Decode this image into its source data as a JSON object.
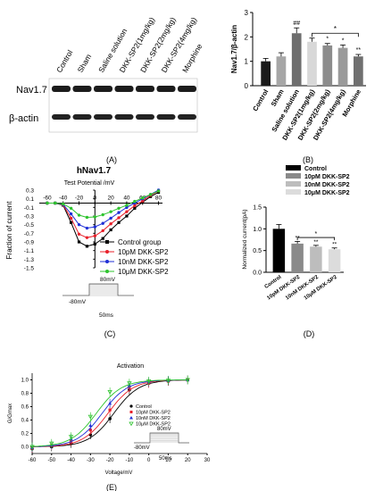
{
  "panel_letters": {
    "a": "(A)",
    "b": "(B)",
    "c": "(C)",
    "d": "(D)",
    "e": "(E)"
  },
  "blot": {
    "lanes": [
      "Control",
      "Sham",
      "Saline solution",
      "DKK-SP2(1mg/kg)",
      "DKK-SP2(2mg/kg)",
      "DKK-SP2(4mg/kg)",
      "Morphine"
    ],
    "rows": [
      "Nav1.7",
      "β-actin"
    ]
  },
  "chart_data": [
    {
      "id": "B",
      "type": "bar",
      "ylabel": "Nav1.7/β-actin",
      "ylim": [
        0,
        3
      ],
      "yticks": [
        "0",
        "1",
        "2",
        "3"
      ],
      "categories": [
        "Control",
        "Sham",
        "Saline solution",
        "DKK-SP2(1mg/kg)",
        "DKK-SP2(2mg/kg)",
        "DKK-SP2(4mg/kg)",
        "Morphine"
      ],
      "values": [
        1.0,
        1.2,
        2.15,
        1.8,
        1.65,
        1.55,
        1.2
      ],
      "errors": [
        0.12,
        0.15,
        0.22,
        0.15,
        0.08,
        0.12,
        0.08
      ],
      "colors": [
        "#1a1a1a",
        "#a6a6a6",
        "#6e6e6e",
        "#d8d8d8",
        "#8c8c8c",
        "#9a9a9a",
        "#707070"
      ],
      "sig": [
        "",
        "",
        "##",
        "",
        "*",
        "*",
        "**"
      ],
      "bracket": "*"
    },
    {
      "id": "C",
      "type": "line",
      "title": "hNav1.7",
      "subtitle": "Test Potential /mV",
      "ylabel": "Fraction of current",
      "xticks": [
        "-60",
        "-40",
        "-20",
        "0",
        "20",
        "40",
        "60",
        "80"
      ],
      "yticks": [
        "0.3",
        "0.1",
        "-0.1",
        "-0.3",
        "-0.5",
        "-0.7",
        "-0.9",
        "-1.1",
        "-1.3",
        "-1.5"
      ],
      "xlim": [
        -70,
        85
      ],
      "ylim": [
        -1.5,
        0.3
      ],
      "legend": [
        "Control group",
        "10pM DKK-SP2",
        "10nM DKK-SP2",
        "10μM DKK-SP2"
      ],
      "colors": [
        "#000000",
        "#e8202a",
        "#1f2fd6",
        "#2ec42e"
      ],
      "x": [
        -60,
        -50,
        -40,
        -30,
        -20,
        -10,
        0,
        10,
        20,
        30,
        40,
        50,
        60,
        70,
        80
      ],
      "series": [
        {
          "name": "Control group",
          "values": [
            0,
            0,
            -0.05,
            -0.45,
            -0.9,
            -1.0,
            -0.95,
            -0.82,
            -0.62,
            -0.45,
            -0.3,
            -0.12,
            0.02,
            0.15,
            0.25
          ]
        },
        {
          "name": "10pM DKK-SP2",
          "values": [
            0,
            0,
            -0.04,
            -0.35,
            -0.72,
            -0.8,
            -0.76,
            -0.64,
            -0.48,
            -0.34,
            -0.2,
            -0.06,
            0.05,
            0.18,
            0.28
          ]
        },
        {
          "name": "10nM DKK-SP2",
          "values": [
            0,
            0,
            -0.03,
            -0.25,
            -0.5,
            -0.58,
            -0.55,
            -0.47,
            -0.35,
            -0.22,
            -0.1,
            0.0,
            0.1,
            0.2,
            0.3
          ]
        },
        {
          "name": "10μM DKK-SP2",
          "values": [
            0,
            0,
            -0.02,
            -0.12,
            -0.28,
            -0.33,
            -0.32,
            -0.27,
            -0.2,
            -0.12,
            -0.05,
            0.04,
            0.12,
            0.2,
            0.28
          ]
        }
      ],
      "protocol": {
        "top": "80mV",
        "left": "-80mV",
        "bottom": "50ms"
      }
    },
    {
      "id": "D",
      "type": "bar",
      "ylabel": "Normalized current(pA)",
      "ylim": [
        0,
        1.5
      ],
      "yticks": [
        "0.0",
        "0.5",
        "1.0",
        "1.5"
      ],
      "categories": [
        "Control",
        "10pM DKK-SP2",
        "10nM DKK-SP2",
        "10μM DKK-SP2"
      ],
      "values": [
        1.0,
        0.66,
        0.59,
        0.53
      ],
      "errors": [
        0.1,
        0.05,
        0.03,
        0.03
      ],
      "colors": [
        "#000000",
        "#8a8a8a",
        "#bdbdbd",
        "#dcdcdc"
      ],
      "sig": [
        "",
        "**",
        "**",
        "**"
      ],
      "bracket": "*",
      "legend": [
        "Control",
        "10pM DKK-SP2",
        "10nM DKK-SP2",
        "10μM DKK-SP2"
      ]
    },
    {
      "id": "E",
      "type": "scatter",
      "title": "Activation",
      "xlabel": "Voltage/mV",
      "ylabel": "G/Gmax",
      "xlim": [
        -60,
        30
      ],
      "ylim": [
        -0.1,
        1.1
      ],
      "xticks": [
        "-60",
        "-50",
        "-40",
        "-30",
        "-20",
        "-10",
        "0",
        "10",
        "20",
        "30"
      ],
      "yticks": [
        "0.0",
        "0.2",
        "0.4",
        "0.6",
        "0.8",
        "1.0"
      ],
      "legend": [
        "Control",
        "10pM DKK-SP2",
        "10nM DKK-SP2",
        "10μM DKK-SP2"
      ],
      "colors": [
        "#000000",
        "#e8202a",
        "#1f2fd6",
        "#2ec42e"
      ],
      "x": [
        -60,
        -50,
        -40,
        -30,
        -20,
        -10,
        0,
        10,
        20
      ],
      "series": [
        {
          "name": "Control",
          "values": [
            -0.03,
            0.0,
            0.05,
            0.18,
            0.42,
            0.85,
            0.95,
            0.98,
            1.0
          ],
          "v_half": -18,
          "k": 6.5
        },
        {
          "name": "10pM DKK-SP2",
          "values": [
            -0.02,
            0.02,
            0.08,
            0.25,
            0.55,
            0.88,
            0.95,
            0.98,
            1.0
          ],
          "v_half": -21,
          "k": 6.5
        },
        {
          "name": "10nM DKK-SP2",
          "values": [
            -0.01,
            0.03,
            0.12,
            0.32,
            0.65,
            0.92,
            0.97,
            0.99,
            1.0
          ],
          "v_half": -24,
          "k": 6.5
        },
        {
          "name": "10μM DKK-SP2",
          "values": [
            0.0,
            0.05,
            0.15,
            0.45,
            0.82,
            0.95,
            0.98,
            0.99,
            1.0
          ],
          "v_half": -27,
          "k": 6.5
        }
      ],
      "protocol": {
        "top": "80mV",
        "left": "-80mV",
        "bottom": "50ms"
      }
    }
  ]
}
